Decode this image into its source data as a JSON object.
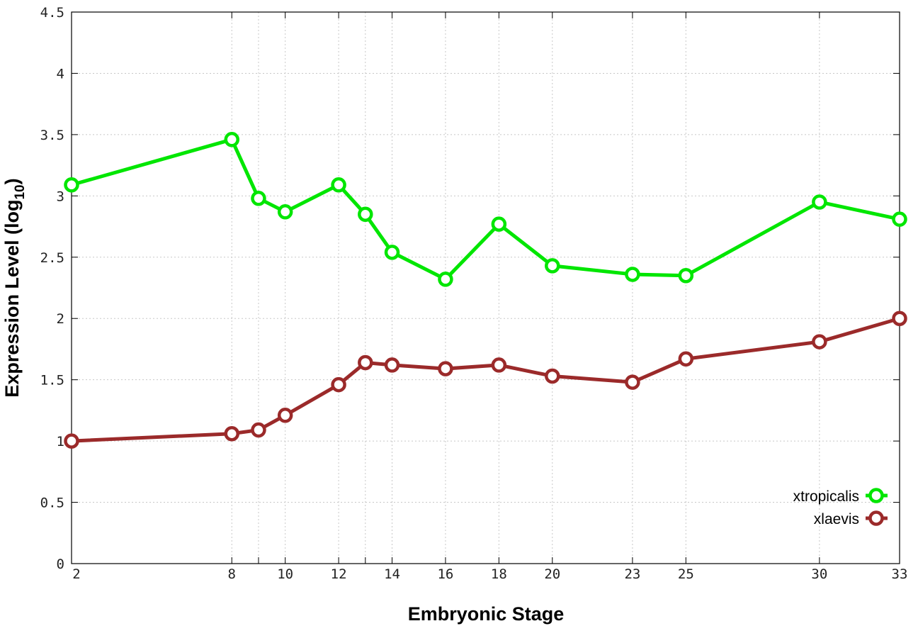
{
  "chart_data": {
    "type": "line",
    "xlabel": "Embryonic Stage",
    "ylabel_main": "Expression Level (log",
    "ylabel_sub": "10",
    "ylabel_close": ")",
    "xlim": [
      2,
      33
    ],
    "ylim": [
      0,
      4.5
    ],
    "x": [
      2,
      8,
      9,
      10,
      12,
      13,
      14,
      16,
      18,
      20,
      23,
      25,
      30,
      33
    ],
    "x_ticks": [
      {
        "value": 2,
        "label": "2"
      },
      {
        "value": 8,
        "label": "8"
      },
      {
        "value": 10,
        "label": "10"
      },
      {
        "value": 12,
        "label": "12"
      },
      {
        "value": 14,
        "label": "14"
      },
      {
        "value": 16,
        "label": "16"
      },
      {
        "value": 18,
        "label": "18"
      },
      {
        "value": 20,
        "label": "20"
      },
      {
        "value": 23,
        "label": "23"
      },
      {
        "value": 25,
        "label": "25"
      },
      {
        "value": 30,
        "label": "30"
      },
      {
        "value": 33,
        "label": "33"
      }
    ],
    "y_ticks": [
      {
        "value": 0,
        "label": "0"
      },
      {
        "value": 0.5,
        "label": "0.5"
      },
      {
        "value": 1,
        "label": "1"
      },
      {
        "value": 1.5,
        "label": "1.5"
      },
      {
        "value": 2,
        "label": "2"
      },
      {
        "value": 2.5,
        "label": "2.5"
      },
      {
        "value": 3,
        "label": "3"
      },
      {
        "value": 3.5,
        "label": "3.5"
      },
      {
        "value": 4,
        "label": "4"
      },
      {
        "value": 4.5,
        "label": "4.5"
      }
    ],
    "grid": true,
    "legend_position": "bottom-right",
    "series": [
      {
        "name": "xtropicalis",
        "color": "#00e600",
        "values": [
          3.09,
          3.46,
          2.98,
          2.87,
          3.09,
          2.85,
          2.54,
          2.32,
          2.77,
          2.43,
          2.36,
          2.35,
          2.95,
          2.81
        ]
      },
      {
        "name": "xlaevis",
        "color": "#9b2a2a",
        "values": [
          1.0,
          1.06,
          1.09,
          1.21,
          1.46,
          1.64,
          1.62,
          1.59,
          1.62,
          1.53,
          1.48,
          1.67,
          1.81,
          2.0
        ]
      }
    ]
  }
}
